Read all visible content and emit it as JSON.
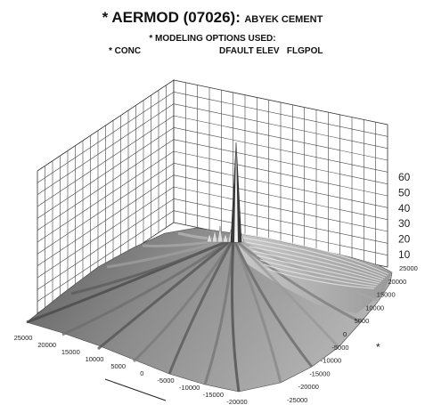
{
  "header": {
    "title_main": "* AERMOD (07026):",
    "title_site": "ABYEK CEMENT",
    "options_label": "* MODELING OPTIONS USED:",
    "option_conc": "* CONC",
    "option_flags": "DFAULT ELEV   FLGPOL"
  },
  "chart_data": {
    "type": "surface3d",
    "x_axis": {
      "range": [
        -20000,
        25000
      ],
      "ticks": [
        "25000",
        "20000",
        "15000",
        "10000",
        "5000",
        "0",
        "-5000",
        "-10000",
        "-15000",
        "-20000"
      ]
    },
    "y_axis": {
      "range": [
        -25000,
        25000
      ],
      "ticks": [
        "25000",
        "20000",
        "15000",
        "10000",
        "5000",
        "0",
        "-5000",
        "-10000",
        "-15000",
        "-20000",
        "-25000"
      ],
      "label": "*"
    },
    "z_axis": {
      "ticks": [
        "60",
        "50",
        "40",
        "30",
        "20",
        "10"
      ]
    },
    "peak": {
      "x": 0,
      "y": 0
    },
    "surface_color": "#8a8a8a",
    "grid": true
  }
}
